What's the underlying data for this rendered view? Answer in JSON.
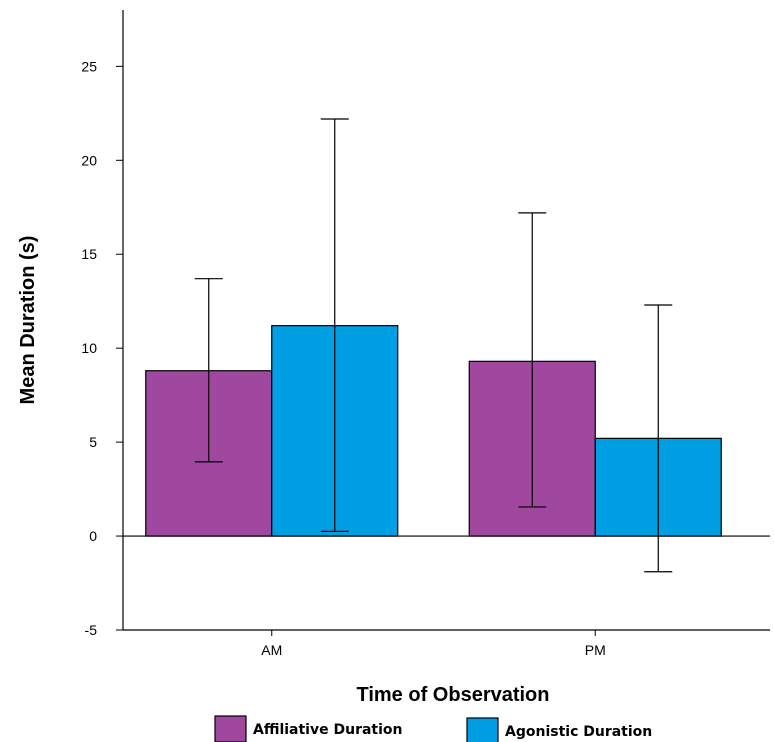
{
  "chart_data": {
    "type": "bar",
    "title": "",
    "xlabel": "Time of Observation",
    "ylabel": "Mean Duration (s)",
    "categories": [
      "AM",
      "PM"
    ],
    "ylim": [
      -5,
      28
    ],
    "yticks": [
      -5,
      0,
      5,
      10,
      15,
      20,
      25
    ],
    "grid": false,
    "legend_position": "bottom",
    "series": [
      {
        "name": "Affiliative Duration",
        "color": "#a0489f",
        "values": [
          8.8,
          9.3
        ],
        "error_low": [
          3.95,
          1.55
        ],
        "error_high": [
          13.7,
          17.2
        ]
      },
      {
        "name": "Agonistic Duration",
        "color": "#009fe3",
        "values": [
          11.2,
          5.2
        ],
        "error_low": [
          0.25,
          -1.9
        ],
        "error_high": [
          22.2,
          12.3
        ]
      }
    ]
  }
}
